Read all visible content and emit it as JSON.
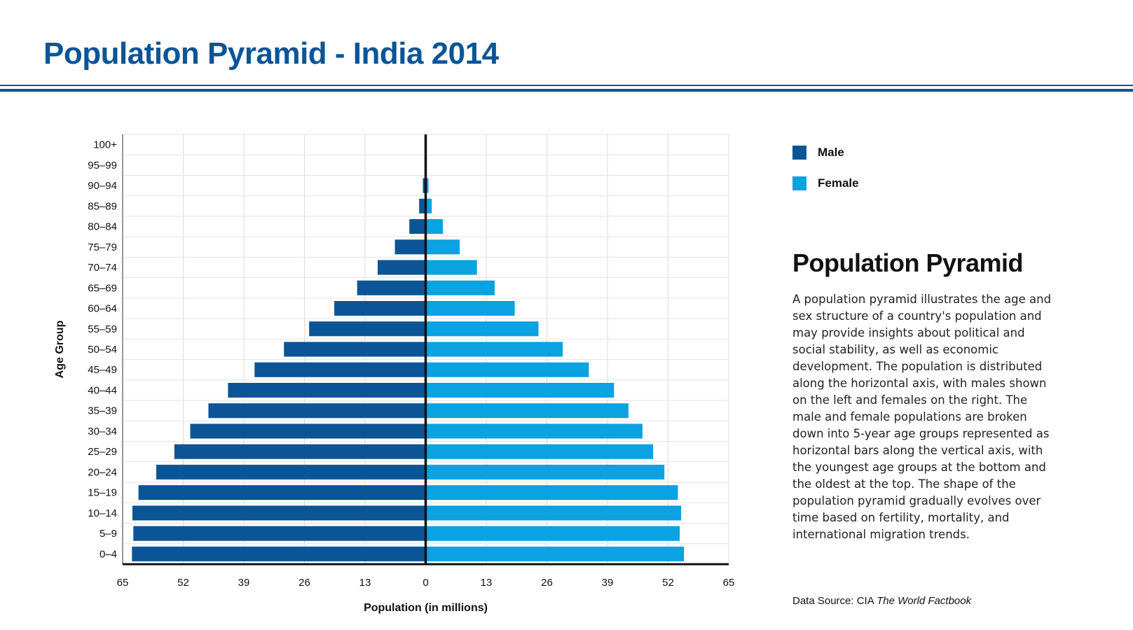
{
  "title": "Population Pyramid - India 2014",
  "colors": {
    "male": "#0b5596",
    "female": "#0aa2e0",
    "accent": "#0b5596"
  },
  "legend": [
    {
      "label": "Male",
      "color": "#0b5596"
    },
    {
      "label": "Female",
      "color": "#0aa2e0"
    }
  ],
  "sidebar": {
    "heading": "Population Pyramid",
    "body": "A population pyramid illustrates the age and sex structure of a country's population and may provide insights about political and social stability, as well as economic development. The population is distributed along the horizontal axis, with males shown on the left and females on the right. The male and female populations are broken down into 5-year age groups represented as horizontal bars along the vertical axis, with the youngest age groups at the bottom and the oldest at the top. The shape of the population pyramid gradually evolves over time based on fertility, mortality, and international migration trends."
  },
  "source": {
    "prefix": "Data Source: CIA ",
    "title": "The World Factbook"
  },
  "chart_data": {
    "type": "bar",
    "orientation": "horizontal-diverging",
    "xlabel": "Population (in millions)",
    "ylabel": "Age Group",
    "xlim": [
      -65,
      65
    ],
    "xticks": [
      65,
      52,
      39,
      26,
      13,
      0,
      13,
      26,
      39,
      52,
      65
    ],
    "grid": true,
    "legend_position": "right",
    "categories": [
      "0–4",
      "5–9",
      "10–14",
      "15–19",
      "20–24",
      "25–29",
      "30–34",
      "35–39",
      "40–44",
      "45–49",
      "50–54",
      "55–59",
      "60–64",
      "65–69",
      "70–74",
      "75–79",
      "80–84",
      "85–89",
      "90–94",
      "95–99",
      "100+"
    ],
    "series": [
      {
        "name": "Male",
        "values": [
          63.0,
          62.7,
          62.9,
          61.6,
          57.8,
          53.9,
          50.5,
          46.6,
          42.4,
          36.7,
          30.4,
          25.0,
          19.6,
          14.7,
          10.3,
          6.6,
          3.5,
          1.4,
          0.6,
          0.2,
          0.1
        ]
      },
      {
        "name": "Female",
        "values": [
          55.4,
          54.5,
          54.8,
          54.1,
          51.2,
          48.8,
          46.5,
          43.5,
          40.4,
          35.0,
          29.4,
          24.2,
          19.1,
          14.8,
          11.0,
          7.3,
          3.7,
          1.3,
          0.6,
          0.2,
          0.1
        ]
      }
    ]
  }
}
